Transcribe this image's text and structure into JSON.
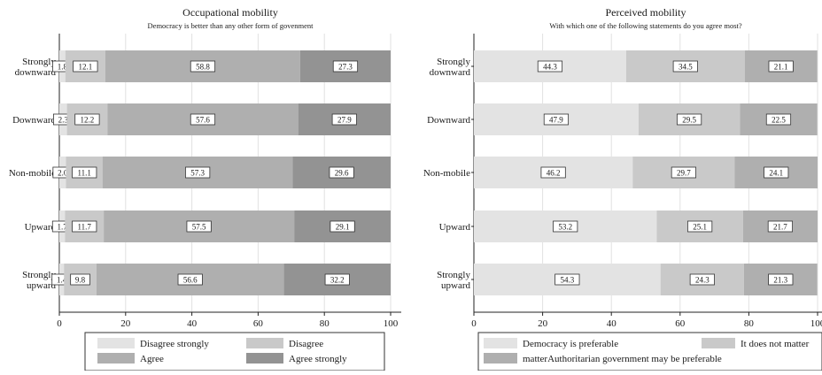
{
  "chart_data": [
    {
      "type": "bar",
      "orientation": "horizontal",
      "stacked": true,
      "title": "Occupational mobility",
      "subtitle": "Democracy is better than any other form of govenment",
      "categories": [
        "Strongly downward",
        "Downward",
        "Non-mobile",
        "Upward",
        "Strongly upward"
      ],
      "category_lines": [
        [
          "Strongly",
          "downward"
        ],
        [
          "Downward"
        ],
        [
          "Non-mobile"
        ],
        [
          "Upward"
        ],
        [
          "Strongly",
          "upward"
        ]
      ],
      "series": [
        {
          "name": "Disagree strongly",
          "values": [
            1.8,
            2.3,
            2.0,
            1.7,
            1.4
          ],
          "labels": [
            "1.8",
            "2.3",
            "2.0",
            "1.7",
            "1.4"
          ],
          "color": "#e3e3e3"
        },
        {
          "name": "Disagree",
          "values": [
            12.1,
            12.2,
            11.1,
            11.7,
            9.8
          ],
          "labels": [
            "12.1",
            "12.2",
            "11.1",
            "11.7",
            "9.8"
          ],
          "color": "#c9c9c9"
        },
        {
          "name": "Agree",
          "values": [
            58.8,
            57.6,
            57.3,
            57.5,
            56.6
          ],
          "labels": [
            "58.8",
            "57.6",
            "57.3",
            "57.5",
            "56.6"
          ],
          "color": "#afafaf"
        },
        {
          "name": "Agree strongly",
          "values": [
            27.3,
            27.9,
            29.6,
            29.1,
            32.2
          ],
          "labels": [
            "27.3",
            "27.9",
            "29.6",
            "29.1",
            "32.2"
          ],
          "color": "#939393"
        }
      ],
      "xlim": [
        0,
        100
      ],
      "xticks": [
        "0",
        "20",
        "40",
        "60",
        "80",
        "100"
      ],
      "grid": true,
      "legend": {
        "position": "bottom",
        "columns": 2,
        "entries": [
          "Disagree strongly",
          "Disagree",
          "Agree",
          "Agree strongly"
        ]
      }
    },
    {
      "type": "bar",
      "orientation": "horizontal",
      "stacked": true,
      "title": "Perceived mobility",
      "subtitle": "With which one of the following statements do you agree most?",
      "categories": [
        "Strongly downward",
        "Downward",
        "Non-mobile",
        "Upward",
        "Strongly upward"
      ],
      "category_lines": [
        [
          "Strongly",
          "downward"
        ],
        [
          "Downward"
        ],
        [
          "Non-mobile"
        ],
        [
          "Upward"
        ],
        [
          "Strongly",
          "upward"
        ]
      ],
      "series": [
        {
          "name": "Democracy is preferable",
          "values": [
            44.3,
            47.9,
            46.2,
            53.2,
            54.3
          ],
          "labels": [
            "44.3",
            "47.9",
            "46.2",
            "53.2",
            "54.3"
          ],
          "color": "#e3e3e3"
        },
        {
          "name": "It does not matter",
          "values": [
            34.5,
            29.5,
            29.7,
            25.1,
            24.3
          ],
          "labels": [
            "34.5",
            "29.5",
            "29.7",
            "25.1",
            "24.3"
          ],
          "color": "#c9c9c9"
        },
        {
          "name": "Authoritarian government may be preferable",
          "values": [
            21.1,
            22.5,
            24.1,
            21.7,
            21.3
          ],
          "labels": [
            "21.1",
            "22.5",
            "24.1",
            "21.7",
            "21.3"
          ],
          "color": "#afafaf"
        }
      ],
      "xlim": [
        0,
        100
      ],
      "xticks": [
        "0",
        "20",
        "40",
        "60",
        "80",
        "100"
      ],
      "grid": true,
      "legend": {
        "position": "bottom",
        "columns": 2,
        "entries": [
          "Democracy is preferable",
          "It does not matter",
          "matterAuthoritarian government may be preferable"
        ]
      }
    }
  ]
}
